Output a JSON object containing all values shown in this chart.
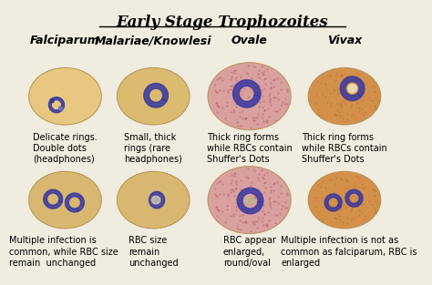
{
  "title": "Early Stage Trophozoites",
  "background_color": "#f0ece0",
  "species": [
    "Falciparum",
    "Malariae/Knowlesi",
    "Ovale",
    "Vivax"
  ],
  "top_descriptions": [
    "Delicate rings.\nDouble dots\n(headphones)",
    "Small, thick\nrings (rare\nheadphones)",
    "Thick ring forms\nwhile RBCs contain\nShuffer's Dots",
    "Thick ring forms\nwhile RBCs contain\nShuffer's Dots"
  ],
  "bottom_descriptions": [
    "Multiple infection is\ncommon, while RBC size\nremain  unchanged",
    "RBC size\nremain\nunchanged",
    "RBC appear\nenlarged,\nround/oval",
    "Multiple infection is not as\ncommon as falciparum, RBC is\nenlarged"
  ],
  "rbc_colors_top": [
    "#e8c880",
    "#dabb70",
    "#d9a0a0",
    "#d4904a"
  ],
  "rbc_colors_bottom": [
    "#d8b870",
    "#d8b870",
    "#d9a0a0",
    "#d4904a"
  ],
  "parasite_color": "#3838a0",
  "title_fontsize": 12,
  "species_fontsize": 9,
  "desc_fontsize": 7
}
